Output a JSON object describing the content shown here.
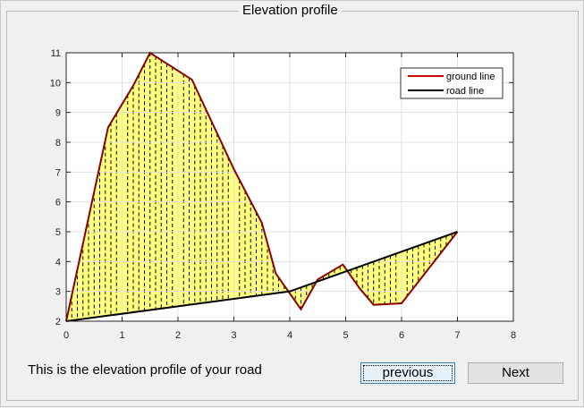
{
  "panel": {
    "title": "Elevation profile"
  },
  "message": "This is the elevation profile of your road",
  "buttons": {
    "previous": "previous",
    "next": "Next"
  },
  "colors": {
    "ground_line": "#8b0000",
    "road_line": "#000000",
    "fill": "#ffff80"
  },
  "chart_data": {
    "type": "area",
    "title": "",
    "xlabel": "",
    "ylabel": "",
    "xlim": [
      0,
      8
    ],
    "ylim": [
      2,
      11
    ],
    "xticks": [
      0,
      1,
      2,
      3,
      4,
      5,
      6,
      7,
      8
    ],
    "yticks": [
      2,
      3,
      4,
      5,
      6,
      7,
      8,
      9,
      10,
      11
    ],
    "grid": true,
    "legend_position": "top-right",
    "series": [
      {
        "name": "ground line",
        "color": "#8b0000",
        "x": [
          0,
          0.75,
          1.2,
          1.5,
          2.25,
          3.0,
          3.5,
          3.75,
          4.2,
          4.5,
          4.95,
          5.25,
          5.5,
          6.0,
          7.0
        ],
        "y": [
          2.0,
          8.5,
          9.9,
          11.0,
          10.1,
          7.1,
          5.3,
          3.6,
          2.4,
          3.4,
          3.9,
          3.1,
          2.55,
          2.6,
          5.0
        ]
      },
      {
        "name": "road line",
        "color": "#000000",
        "x": [
          0,
          4.0,
          7.0
        ],
        "y": [
          2.0,
          3.0,
          5.0
        ]
      }
    ]
  }
}
